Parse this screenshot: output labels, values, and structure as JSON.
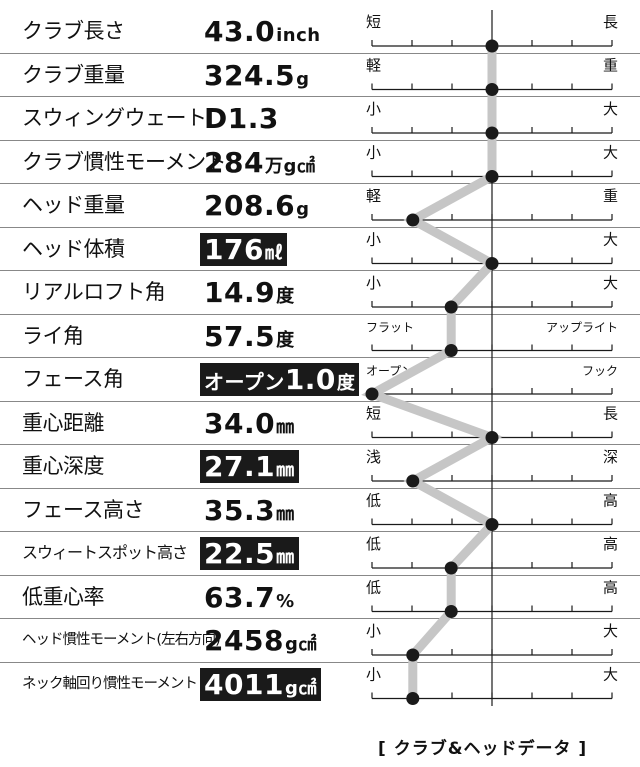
{
  "chart_data": {
    "type": "table",
    "rows": [
      {
        "name": "クラブ長さ",
        "value": "43.0",
        "unit": "inch",
        "prefix": "",
        "inverted": false,
        "left": "短",
        "right": "長",
        "position": 0.5
      },
      {
        "name": "クラブ重量",
        "value": "324.5",
        "unit": "g",
        "prefix": "",
        "inverted": false,
        "left": "軽",
        "right": "重",
        "position": 0.5
      },
      {
        "name": "スウィングウェート",
        "value": "D1.3",
        "unit": "",
        "prefix": "",
        "inverted": false,
        "left": "小",
        "right": "大",
        "position": 0.5
      },
      {
        "name": "クラブ慣性モーメント",
        "value": "284",
        "unit": "万g㎠",
        "prefix": "",
        "inverted": false,
        "left": "小",
        "right": "大",
        "position": 0.5
      },
      {
        "name": "ヘッド重量",
        "value": "208.6",
        "unit": "g",
        "prefix": "",
        "inverted": false,
        "left": "軽",
        "right": "重",
        "position": 0.17
      },
      {
        "name": "ヘッド体積",
        "value": "176",
        "unit": "㎖",
        "prefix": "",
        "inverted": true,
        "left": "小",
        "right": "大",
        "position": 0.5
      },
      {
        "name": "リアルロフト角",
        "value": "14.9",
        "unit": "度",
        "prefix": "",
        "inverted": false,
        "left": "小",
        "right": "大",
        "position": 0.33
      },
      {
        "name": "ライ角",
        "value": "57.5",
        "unit": "度",
        "prefix": "",
        "inverted": false,
        "left": "フラット",
        "right": "アップライト",
        "position": 0.33
      },
      {
        "name": "フェース角",
        "value": "1.0",
        "unit": "度",
        "prefix": "オープン",
        "inverted": true,
        "left": "オープン",
        "right": "フック",
        "position": 0.0
      },
      {
        "name": "重心距離",
        "value": "34.0",
        "unit": "㎜",
        "prefix": "",
        "inverted": false,
        "left": "短",
        "right": "長",
        "position": 0.5
      },
      {
        "name": "重心深度",
        "value": "27.1",
        "unit": "㎜",
        "prefix": "",
        "inverted": true,
        "left": "浅",
        "right": "深",
        "position": 0.17
      },
      {
        "name": "フェース高さ",
        "value": "35.3",
        "unit": "㎜",
        "prefix": "",
        "inverted": false,
        "left": "低",
        "right": "高",
        "position": 0.5
      },
      {
        "name": "スウィートスポット高さ",
        "value": "22.5",
        "unit": "㎜",
        "prefix": "",
        "inverted": true,
        "left": "低",
        "right": "高",
        "position": 0.33
      },
      {
        "name": "低重心率",
        "value": "63.7",
        "unit": "%",
        "prefix": "",
        "inverted": false,
        "left": "低",
        "right": "高",
        "position": 0.33
      },
      {
        "name": "ヘッド慣性モーメント(左右方向)",
        "value": "2458",
        "unit": "g㎠",
        "prefix": "",
        "inverted": false,
        "left": "小",
        "right": "大",
        "position": 0.17
      },
      {
        "name": "ネック軸回り慣性モーメント",
        "value": "4011",
        "unit": "g㎠",
        "prefix": "",
        "inverted": true,
        "left": "小",
        "right": "大",
        "position": 0.17
      }
    ],
    "scale_ticks": 7,
    "caption": "[ クラブ&ヘッドデータ ]"
  },
  "colors": {
    "line": "#c6c6c6",
    "dot": "#1a1a1a",
    "axis": "#1a1a1a",
    "inverted_bg": "#1a1a1a"
  }
}
